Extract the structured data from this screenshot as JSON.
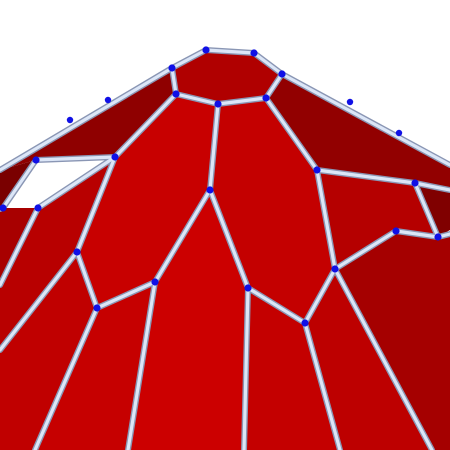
{
  "figure": {
    "subject": "polyhedron-mesh",
    "colors": {
      "background": "#ffffff",
      "face_dark": "#8f0000",
      "face_mid": "#b50000",
      "face_bright": "#c80000",
      "face_right": "#a00000",
      "edge_outer": "#8a96b4",
      "edge_inner": "#dce6f7",
      "vertex": "#1010e6"
    }
  }
}
